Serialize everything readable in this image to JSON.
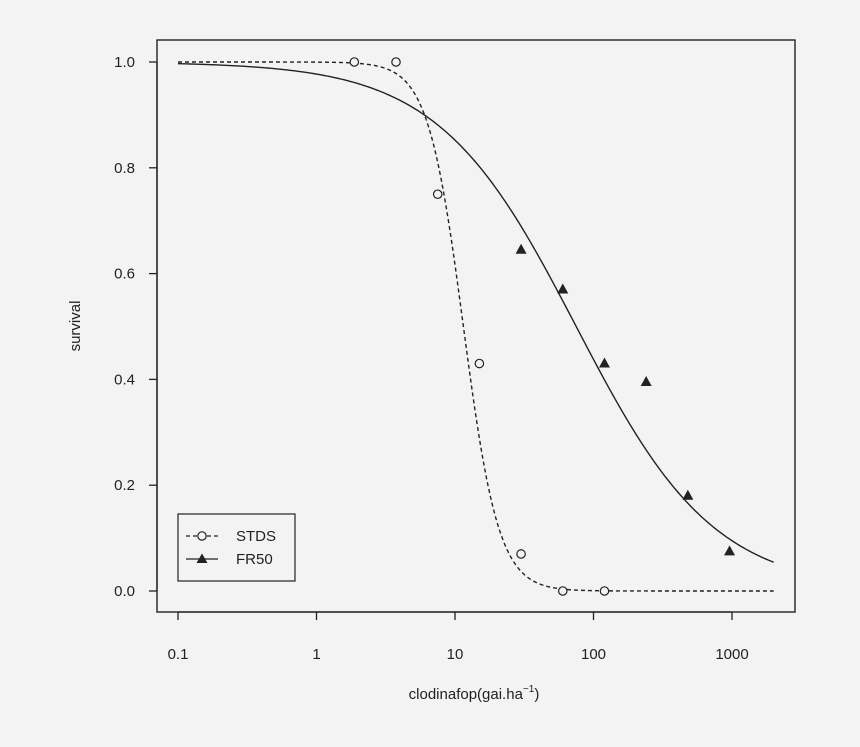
{
  "chart_data": {
    "type": "scatter",
    "xlabel": "clodinafop(gai.ha",
    "xlabel_sup": "−1",
    "xlabel_close": ")",
    "ylabel": "survival",
    "x_scale": "log",
    "xlim": [
      0.1,
      2000
    ],
    "ylim": [
      0.0,
      1.0
    ],
    "x_ticks": [
      0.1,
      1,
      10,
      100,
      1000
    ],
    "x_tick_labels": [
      "0.1",
      "1",
      "10",
      "100",
      "1000"
    ],
    "y_ticks": [
      0.0,
      0.2,
      0.4,
      0.6,
      0.8,
      1.0
    ],
    "y_tick_labels": [
      "0.0",
      "0.2",
      "0.4",
      "0.6",
      "0.8",
      "1.0"
    ],
    "grid": false,
    "legend_position": "bottom-left",
    "series": [
      {
        "name": "STDS",
        "marker": "open-circle",
        "line": "dashed",
        "x": [
          1.875,
          3.75,
          7.5,
          15,
          30,
          60,
          120
        ],
        "y": [
          1.0,
          1.0,
          0.75,
          0.43,
          0.07,
          0.0,
          0.0
        ],
        "curve": {
          "ed50": 11.5,
          "slope": 3.4
        }
      },
      {
        "name": "FR50",
        "marker": "filled-triangle",
        "line": "solid",
        "x": [
          30,
          60,
          120,
          240,
          480,
          960
        ],
        "y": [
          0.645,
          0.57,
          0.43,
          0.395,
          0.18,
          0.075
        ],
        "curve": {
          "ed50": 75,
          "slope": 0.87
        }
      }
    ]
  }
}
